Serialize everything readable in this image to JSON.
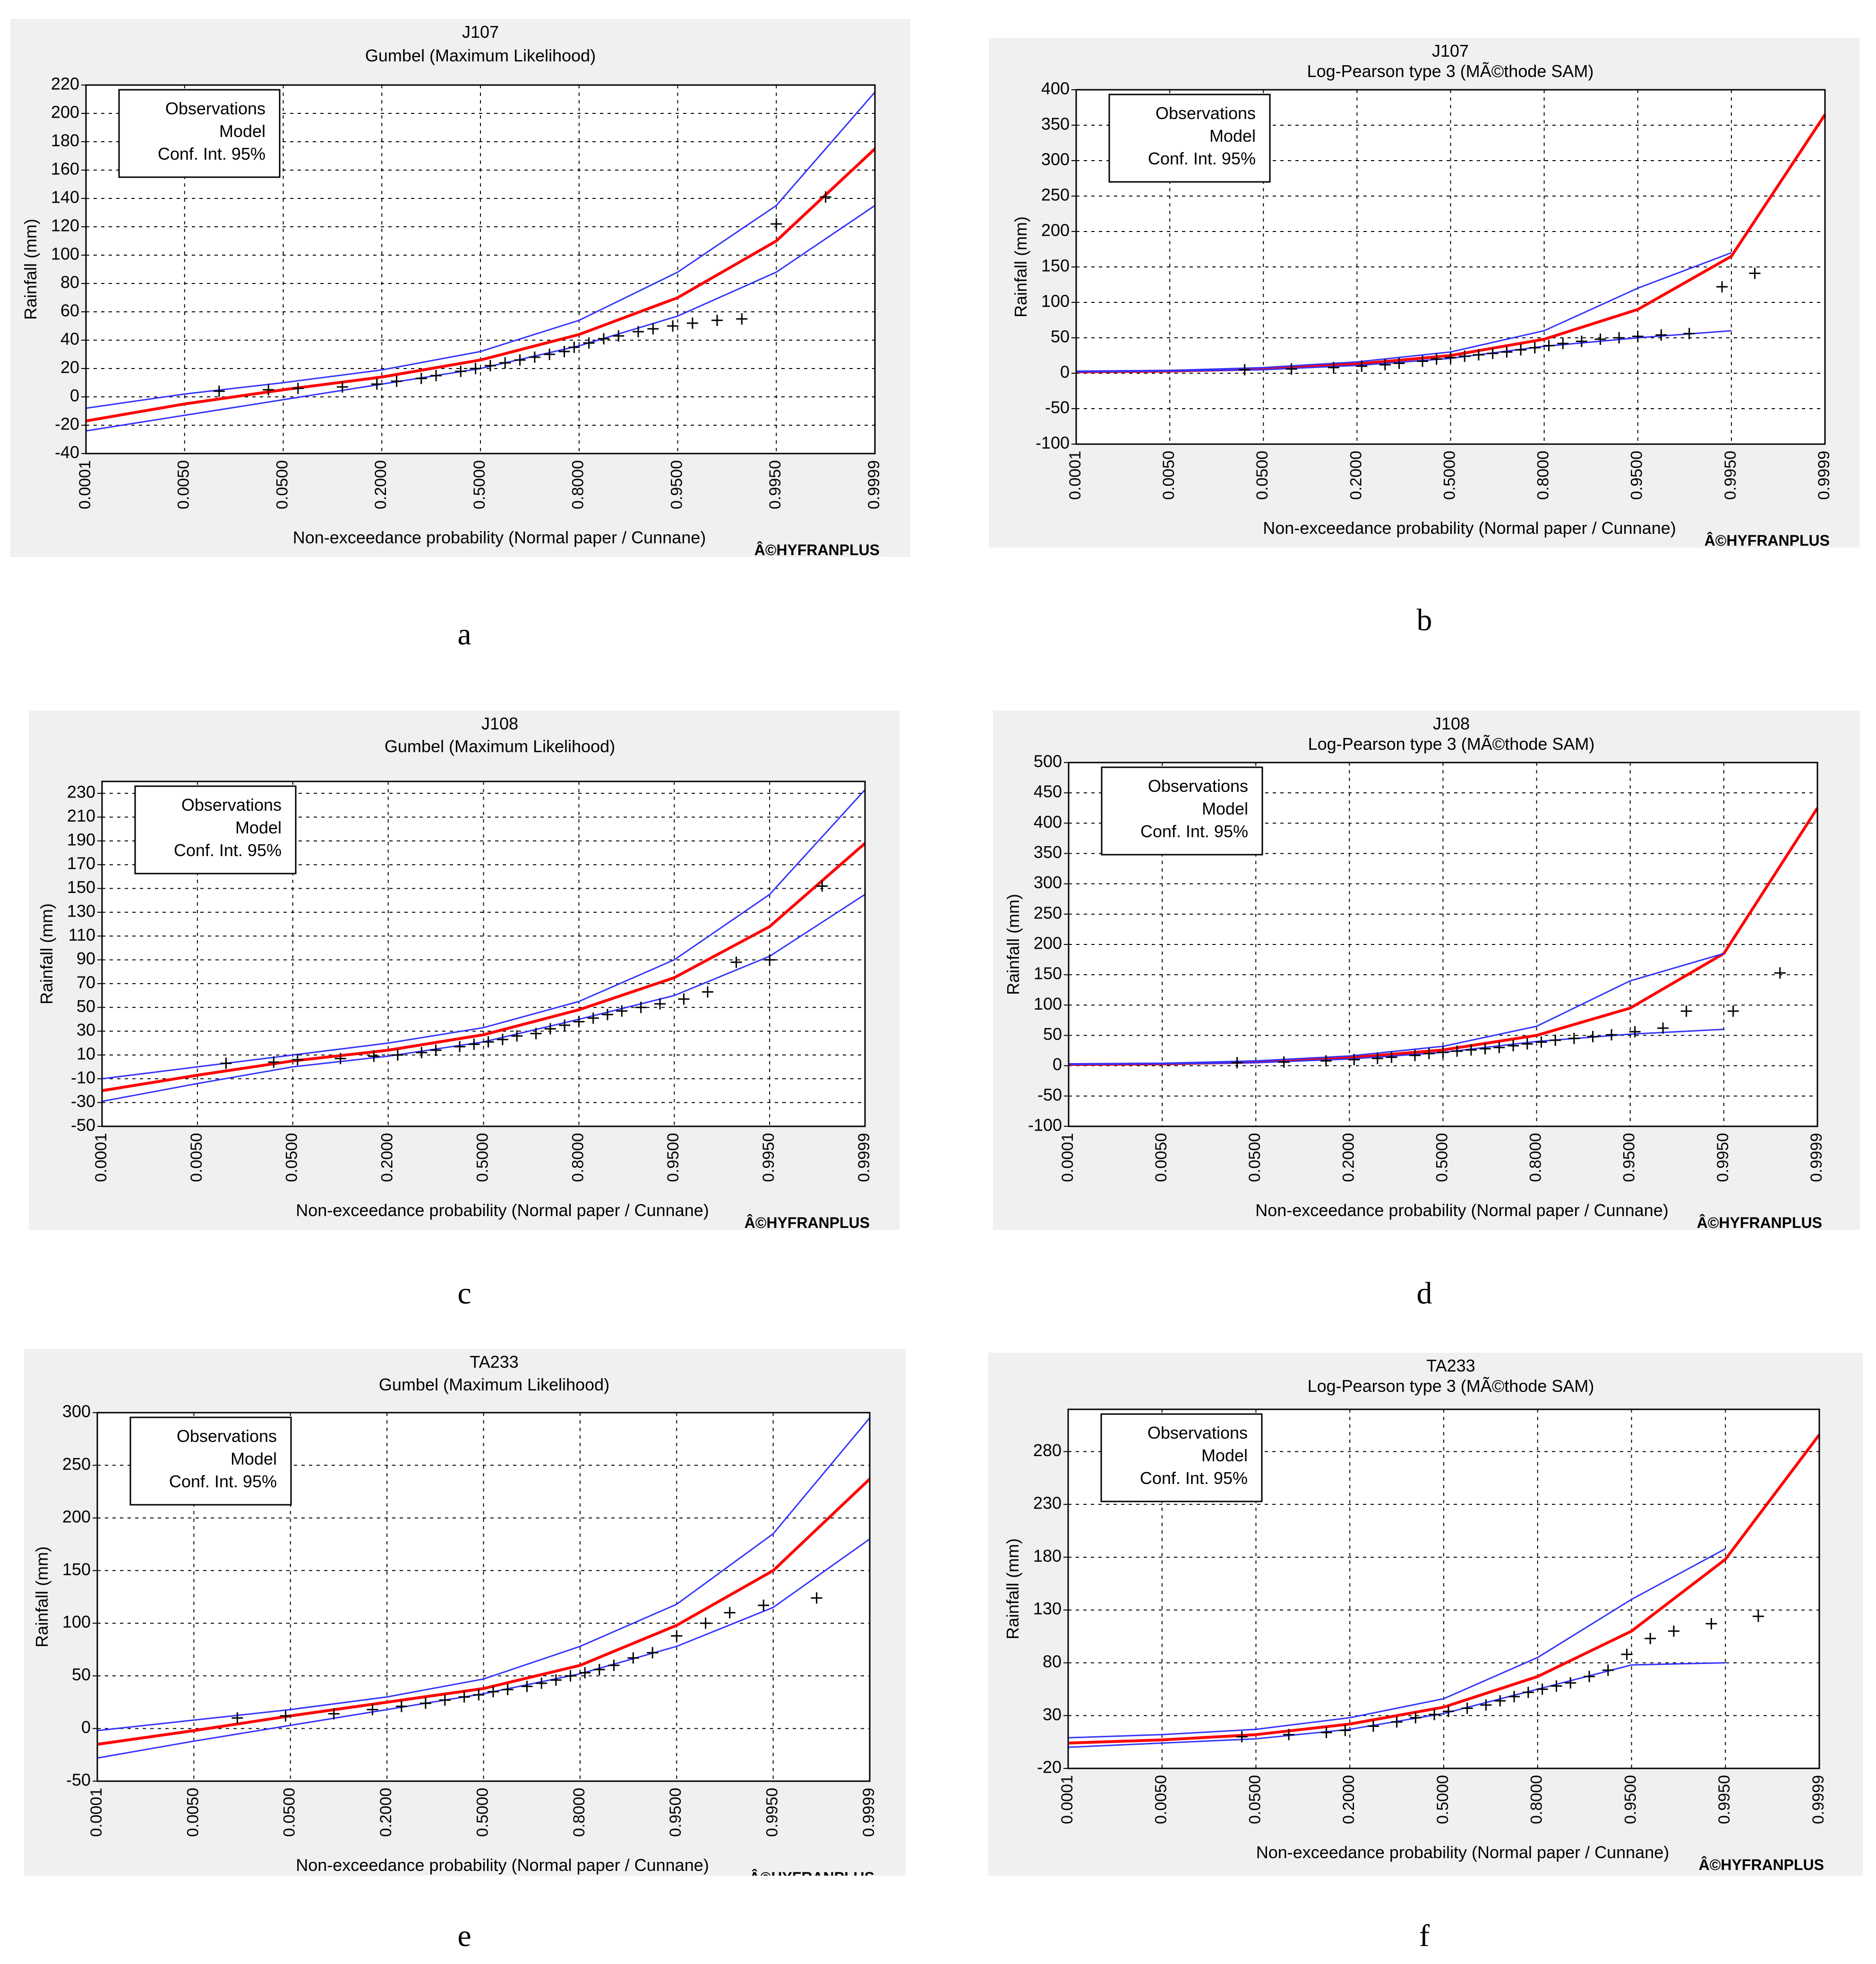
{
  "copyright": "Â©HYFRANPLUS",
  "chart_data": [
    {
      "id": "a",
      "caption": "a",
      "type": "line",
      "station": "J107",
      "method": "Gumbel (Maximum Likelihood)",
      "ylabel": "Rainfall (mm)",
      "xlabel": "Non-exceedance probability (Normal paper / Cunnane)",
      "legend": [
        "Observations",
        "Model",
        "Conf. Int. 95%"
      ],
      "ylim": [
        -40,
        220
      ],
      "yticks": [
        -40,
        -20,
        0,
        20,
        40,
        60,
        80,
        100,
        120,
        140,
        160,
        180,
        200,
        220
      ],
      "xtick_labels": [
        "0.0001",
        "0.0050",
        "0.0500",
        "0.2000",
        "0.5000",
        "0.8000",
        "0.9500",
        "0.9950",
        "0.9999"
      ],
      "series": [
        {
          "name": "Model",
          "values": [
            -17,
            -5,
            5,
            14,
            26,
            44,
            70,
            110,
            175
          ]
        },
        {
          "name": "Conf. Int. 95% upper",
          "values": [
            -8,
            2,
            10,
            19,
            32,
            54,
            88,
            135,
            215
          ]
        },
        {
          "name": "Conf. Int. 95% lower",
          "values": [
            -24,
            -13,
            -2,
            9,
            20,
            36,
            57,
            88,
            135
          ]
        }
      ],
      "observations": [
        [
          1.35,
          4
        ],
        [
          1.85,
          5
        ],
        [
          2.15,
          6
        ],
        [
          2.6,
          7
        ],
        [
          2.95,
          9
        ],
        [
          3.15,
          11
        ],
        [
          3.4,
          13
        ],
        [
          3.55,
          15
        ],
        [
          3.8,
          18
        ],
        [
          3.95,
          20
        ],
        [
          4.1,
          22
        ],
        [
          4.25,
          24
        ],
        [
          4.4,
          26
        ],
        [
          4.55,
          28
        ],
        [
          4.7,
          30
        ],
        [
          4.85,
          32
        ],
        [
          4.95,
          35
        ],
        [
          5.1,
          38
        ],
        [
          5.25,
          41
        ],
        [
          5.4,
          43
        ],
        [
          5.6,
          46
        ],
        [
          5.75,
          48
        ],
        [
          5.95,
          50
        ],
        [
          6.15,
          52
        ],
        [
          6.4,
          54
        ],
        [
          6.65,
          55
        ],
        [
          7.0,
          122
        ],
        [
          7.5,
          141
        ]
      ]
    },
    {
      "id": "b",
      "caption": "b",
      "type": "line",
      "station": "J107",
      "method": "Log-Pearson type 3 (MÃ©thode SAM)",
      "ylabel": "Rainfall (mm)",
      "xlabel": "Non-exceedance probability (Normal paper / Cunnane)",
      "legend": [
        "Observations",
        "Model",
        "Conf. Int. 95%"
      ],
      "ylim": [
        -100,
        400
      ],
      "yticks": [
        -100,
        -50,
        0,
        50,
        100,
        150,
        200,
        250,
        300,
        350,
        400
      ],
      "xtick_labels": [
        "0.0001",
        "0.0050",
        "0.0500",
        "0.2000",
        "0.5000",
        "0.8000",
        "0.9500",
        "0.9950",
        "0.9999"
      ],
      "series": [
        {
          "name": "Model",
          "values": [
            2,
            3,
            6,
            13,
            25,
            48,
            90,
            165,
            365
          ]
        },
        {
          "name": "Conf. Int. 95% upper",
          "values": [
            3,
            4,
            8,
            16,
            30,
            60,
            120,
            170,
            null
          ]
        },
        {
          "name": "Conf. Int. 95% lower",
          "values": [
            2,
            3,
            5,
            11,
            21,
            38,
            50,
            60,
            null
          ]
        }
      ],
      "observations": [
        [
          1.8,
          5
        ],
        [
          2.3,
          6
        ],
        [
          2.75,
          8
        ],
        [
          3.05,
          10
        ],
        [
          3.3,
          12
        ],
        [
          3.45,
          14
        ],
        [
          3.7,
          17
        ],
        [
          3.85,
          20
        ],
        [
          4.0,
          22
        ],
        [
          4.15,
          24
        ],
        [
          4.3,
          26
        ],
        [
          4.45,
          28
        ],
        [
          4.6,
          30
        ],
        [
          4.75,
          33
        ],
        [
          4.9,
          36
        ],
        [
          5.05,
          39
        ],
        [
          5.2,
          42
        ],
        [
          5.4,
          45
        ],
        [
          5.6,
          48
        ],
        [
          5.8,
          50
        ],
        [
          6.0,
          52
        ],
        [
          6.25,
          54
        ],
        [
          6.55,
          56
        ],
        [
          6.9,
          122
        ],
        [
          7.25,
          141
        ]
      ]
    },
    {
      "id": "c",
      "caption": "c",
      "type": "line",
      "station": "J108",
      "method": "Gumbel (Maximum Likelihood)",
      "ylabel": "Rainfall (mm)",
      "xlabel": "Non-exceedance probability (Normal paper / Cunnane)",
      "legend": [
        "Observations",
        "Model",
        "Conf. Int. 95%"
      ],
      "ylim": [
        -50,
        240
      ],
      "yticks": [
        -50,
        -30,
        -10,
        10,
        30,
        50,
        70,
        90,
        110,
        130,
        150,
        170,
        190,
        210,
        230
      ],
      "xtick_labels": [
        "0.0001",
        "0.0050",
        "0.0500",
        "0.2000",
        "0.5000",
        "0.8000",
        "0.9500",
        "0.9950",
        "0.9999"
      ],
      "series": [
        {
          "name": "Model",
          "values": [
            -20,
            -7,
            5,
            14,
            27,
            48,
            75,
            118,
            188
          ]
        },
        {
          "name": "Conf. Int. 95% upper",
          "values": [
            -10,
            0,
            10,
            20,
            33,
            55,
            90,
            145,
            233
          ]
        },
        {
          "name": "Conf. Int. 95% lower",
          "values": [
            -29,
            -14,
            0,
            9,
            21,
            40,
            60,
            93,
            145
          ]
        }
      ],
      "observations": [
        [
          1.3,
          3
        ],
        [
          1.8,
          4
        ],
        [
          2.05,
          6
        ],
        [
          2.5,
          7
        ],
        [
          2.85,
          9
        ],
        [
          3.1,
          10
        ],
        [
          3.35,
          12
        ],
        [
          3.5,
          14
        ],
        [
          3.75,
          17
        ],
        [
          3.9,
          19
        ],
        [
          4.05,
          21
        ],
        [
          4.2,
          23
        ],
        [
          4.35,
          26
        ],
        [
          4.55,
          28
        ],
        [
          4.7,
          32
        ],
        [
          4.85,
          35
        ],
        [
          5.0,
          38
        ],
        [
          5.15,
          41
        ],
        [
          5.3,
          44
        ],
        [
          5.45,
          47
        ],
        [
          5.65,
          50
        ],
        [
          5.85,
          53
        ],
        [
          6.1,
          57
        ],
        [
          6.35,
          63
        ],
        [
          6.65,
          88
        ],
        [
          7.0,
          90
        ],
        [
          7.55,
          152
        ]
      ]
    },
    {
      "id": "d",
      "caption": "d",
      "type": "line",
      "station": "J108",
      "method": "Log-Pearson type 3 (MÃ©thode SAM)",
      "ylabel": "Rainfall (mm)",
      "xlabel": "Non-exceedance probability (Normal paper / Cunnane)",
      "legend": [
        "Observations",
        "Model",
        "Conf. Int. 95%"
      ],
      "ylim": [
        -100,
        500
      ],
      "yticks": [
        -100,
        -50,
        0,
        50,
        100,
        150,
        200,
        250,
        300,
        350,
        400,
        450,
        500
      ],
      "xtick_labels": [
        "0.0001",
        "0.0050",
        "0.0500",
        "0.2000",
        "0.5000",
        "0.8000",
        "0.9500",
        "0.9950",
        "0.9999"
      ],
      "series": [
        {
          "name": "Model",
          "values": [
            2,
            3,
            6,
            13,
            26,
            50,
            95,
            185,
            425
          ]
        },
        {
          "name": "Conf. Int. 95% upper",
          "values": [
            3,
            4,
            8,
            16,
            32,
            65,
            140,
            185,
            null
          ]
        },
        {
          "name": "Conf. Int. 95% lower",
          "values": [
            2,
            3,
            5,
            11,
            22,
            40,
            52,
            60,
            null
          ]
        }
      ],
      "observations": [
        [
          1.8,
          5
        ],
        [
          2.3,
          6
        ],
        [
          2.75,
          8
        ],
        [
          3.05,
          10
        ],
        [
          3.3,
          12
        ],
        [
          3.45,
          14
        ],
        [
          3.7,
          17
        ],
        [
          3.85,
          20
        ],
        [
          4.0,
          22
        ],
        [
          4.15,
          24
        ],
        [
          4.3,
          26
        ],
        [
          4.45,
          28
        ],
        [
          4.6,
          30
        ],
        [
          4.75,
          33
        ],
        [
          4.9,
          36
        ],
        [
          5.05,
          39
        ],
        [
          5.2,
          42
        ],
        [
          5.4,
          45
        ],
        [
          5.6,
          48
        ],
        [
          5.8,
          51
        ],
        [
          6.05,
          56
        ],
        [
          6.35,
          62
        ],
        [
          6.6,
          90
        ],
        [
          7.1,
          90
        ],
        [
          7.6,
          153
        ]
      ]
    },
    {
      "id": "e",
      "caption": "e",
      "type": "line",
      "station": "TA233",
      "method": "Gumbel (Maximum Likelihood)",
      "ylabel": "Rainfall (mm)",
      "xlabel": "Non-exceedance probability (Normal paper / Cunnane)",
      "legend": [
        "Observations",
        "Model",
        "Conf. Int. 95%"
      ],
      "ylim": [
        -50,
        300
      ],
      "yticks": [
        -50,
        0,
        50,
        100,
        150,
        200,
        250,
        300
      ],
      "xtick_labels": [
        "0.0001",
        "0.0050",
        "0.0500",
        "0.2000",
        "0.5000",
        "0.8000",
        "0.9500",
        "0.9950",
        "0.9999"
      ],
      "series": [
        {
          "name": "Model",
          "values": [
            -15,
            -2,
            12,
            25,
            38,
            60,
            98,
            150,
            237
          ]
        },
        {
          "name": "Conf. Int. 95% upper",
          "values": [
            -2,
            8,
            18,
            30,
            47,
            78,
            118,
            185,
            295
          ]
        },
        {
          "name": "Conf. Int. 95% lower",
          "values": [
            -28,
            -12,
            3,
            18,
            33,
            52,
            78,
            115,
            180
          ]
        }
      ],
      "observations": [
        [
          1.45,
          10
        ],
        [
          1.95,
          12
        ],
        [
          2.45,
          14
        ],
        [
          2.85,
          18
        ],
        [
          3.15,
          21
        ],
        [
          3.4,
          24
        ],
        [
          3.6,
          27
        ],
        [
          3.8,
          30
        ],
        [
          3.95,
          32
        ],
        [
          4.1,
          35
        ],
        [
          4.25,
          37
        ],
        [
          4.45,
          40
        ],
        [
          4.6,
          43
        ],
        [
          4.75,
          46
        ],
        [
          4.9,
          50
        ],
        [
          5.05,
          53
        ],
        [
          5.2,
          56
        ],
        [
          5.35,
          60
        ],
        [
          5.55,
          67
        ],
        [
          5.75,
          72
        ],
        [
          6.0,
          88
        ],
        [
          6.3,
          100
        ],
        [
          6.55,
          110
        ],
        [
          6.9,
          117
        ],
        [
          7.45,
          124
        ]
      ]
    },
    {
      "id": "f",
      "caption": "f",
      "type": "line",
      "station": "TA233",
      "method": "Log-Pearson type 3 (MÃ©thode SAM)",
      "ylabel": "Rainfall (mm)",
      "xlabel": "Non-exceedance probability (Normal paper / Cunnane)",
      "legend": [
        "Observations",
        "Model",
        "Conf. Int. 95%"
      ],
      "ylim": [
        -20,
        320
      ],
      "yticks": [
        -20,
        30,
        80,
        130,
        180,
        230,
        280
      ],
      "xtick_labels": [
        "0.0001",
        "0.0050",
        "0.0500",
        "0.2000",
        "0.5000",
        "0.8000",
        "0.9500",
        "0.9950",
        "0.9999"
      ],
      "series": [
        {
          "name": "Model",
          "values": [
            4,
            7,
            12,
            22,
            38,
            67,
            110,
            178,
            296
          ]
        },
        {
          "name": "Conf. Int. 95% upper",
          "values": [
            9,
            12,
            17,
            28,
            46,
            85,
            140,
            188,
            null
          ]
        },
        {
          "name": "Conf. Int. 95% lower",
          "values": [
            0,
            4,
            8,
            17,
            32,
            55,
            78,
            80,
            null
          ]
        }
      ],
      "observations": [
        [
          1.85,
          10
        ],
        [
          2.35,
          12
        ],
        [
          2.75,
          14
        ],
        [
          2.95,
          16
        ],
        [
          3.25,
          20
        ],
        [
          3.5,
          24
        ],
        [
          3.7,
          28
        ],
        [
          3.9,
          31
        ],
        [
          4.05,
          34
        ],
        [
          4.25,
          37
        ],
        [
          4.45,
          40
        ],
        [
          4.6,
          44
        ],
        [
          4.75,
          48
        ],
        [
          4.9,
          52
        ],
        [
          5.05,
          55
        ],
        [
          5.2,
          58
        ],
        [
          5.35,
          61
        ],
        [
          5.55,
          67
        ],
        [
          5.75,
          73
        ],
        [
          5.95,
          88
        ],
        [
          6.2,
          103
        ],
        [
          6.45,
          110
        ],
        [
          6.85,
          117
        ],
        [
          7.35,
          124
        ]
      ]
    }
  ]
}
